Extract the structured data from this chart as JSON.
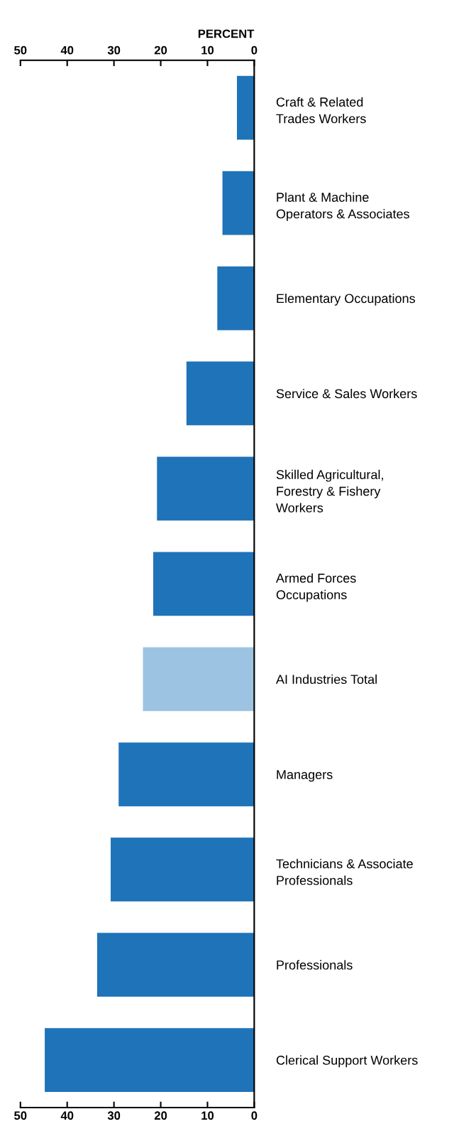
{
  "chart_data": {
    "type": "bar",
    "orientation": "horizontal",
    "x2label": "PERCENT",
    "categories": [
      "Craft & Related\nTrades Workers",
      "Plant & Machine\nOperators & Associates",
      "Elementary Occupations",
      "Service & Sales Workers",
      "Skilled Agricultural,\nForestry & Fishery\nWorkers",
      "Armed Forces\nOccupations",
      "AI Industries Total",
      "Managers",
      "Technicians & Associate\nProfessionals",
      "Professionals",
      "Clerical Support Workers"
    ],
    "values": [
      3.7,
      6.8,
      7.9,
      14.5,
      20.8,
      21.6,
      23.8,
      29.0,
      30.7,
      33.6,
      44.8
    ],
    "colors": [
      "#1f73b8",
      "#1f73b8",
      "#1f73b8",
      "#1f73b8",
      "#1f73b8",
      "#1f73b8",
      "#9dc3e2",
      "#1f73b8",
      "#1f73b8",
      "#1f73b8",
      "#1f73b8"
    ],
    "xlim": [
      50,
      0
    ],
    "xticks": [
      50,
      40,
      30,
      20,
      10,
      0
    ],
    "x2lim": [
      50,
      0
    ],
    "x2ticks": [
      50,
      40,
      30,
      20,
      10,
      0
    ],
    "grid": false
  }
}
